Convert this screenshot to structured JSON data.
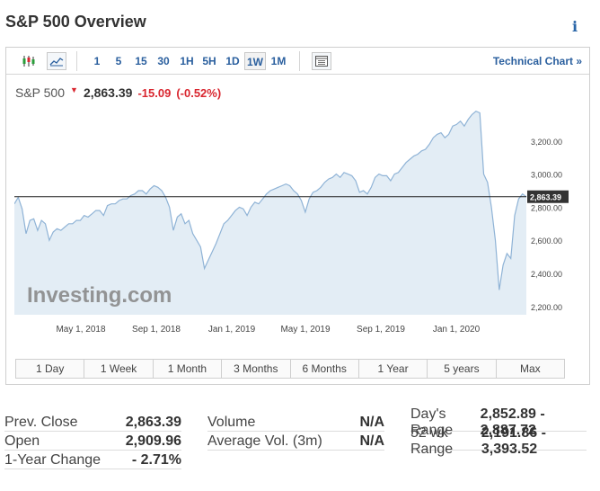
{
  "header": {
    "title": "S&P 500 Overview",
    "info_icon": "i"
  },
  "toolbar": {
    "intervals": [
      "1",
      "5",
      "15",
      "30",
      "1H",
      "5H",
      "1D",
      "1W",
      "1M"
    ],
    "active_interval": "1W",
    "technical_chart_label": "Technical Chart »"
  },
  "quote": {
    "name": "S&P 500",
    "last": "2,863.39",
    "change": "-15.09",
    "change_pct": "(-0.52%)",
    "down_color": "#d9262f"
  },
  "chart_data": {
    "type": "area",
    "x_tick_labels": [
      "May 1, 2018",
      "Sep 1, 2018",
      "Jan 1, 2019",
      "May 1, 2019",
      "Sep 1, 2019",
      "Jan 1, 2020"
    ],
    "y_tick_labels": [
      "3,200.00",
      "3,000.00",
      "2,800.00",
      "2,600.00",
      "2,400.00",
      "2,200.00"
    ],
    "ylim": [
      2150,
      3400
    ],
    "current_value_label": "2,863.39",
    "current_value": 2863.39,
    "watermark": "Investing.com",
    "line_color": "#8fb3d6",
    "fill_color": "#e3edf5",
    "series": [
      {
        "values": [
          2820,
          2860,
          2790,
          2640,
          2720,
          2730,
          2660,
          2720,
          2700,
          2600,
          2650,
          2670,
          2660,
          2680,
          2700,
          2700,
          2720,
          2720,
          2750,
          2740,
          2760,
          2780,
          2780,
          2750,
          2810,
          2820,
          2820,
          2840,
          2850,
          2850,
          2870,
          2880,
          2900,
          2900,
          2880,
          2910,
          2930,
          2920,
          2900,
          2860,
          2800,
          2660,
          2740,
          2760,
          2700,
          2720,
          2640,
          2600,
          2560,
          2430,
          2480,
          2530,
          2580,
          2640,
          2700,
          2720,
          2750,
          2780,
          2800,
          2790,
          2750,
          2800,
          2830,
          2820,
          2850,
          2880,
          2900,
          2910,
          2920,
          2930,
          2940,
          2930,
          2900,
          2880,
          2840,
          2770,
          2850,
          2890,
          2900,
          2920,
          2950,
          2970,
          2980,
          3000,
          2980,
          3010,
          3000,
          2990,
          2960,
          2890,
          2900,
          2880,
          2920,
          2980,
          3000,
          2990,
          2990,
          2960,
          3000,
          3010,
          3040,
          3070,
          3090,
          3110,
          3120,
          3140,
          3150,
          3180,
          3220,
          3240,
          3250,
          3220,
          3240,
          3290,
          3300,
          3320,
          3290,
          3330,
          3360,
          3380,
          3370,
          3000,
          2950,
          2800,
          2600,
          2300,
          2450,
          2520,
          2490,
          2750,
          2850,
          2880,
          2863
        ]
      }
    ]
  },
  "range_buttons": [
    "1 Day",
    "1 Week",
    "1 Month",
    "3 Months",
    "6 Months",
    "1 Year",
    "5 years",
    "Max"
  ],
  "stats": {
    "col1": [
      {
        "label": "Prev. Close",
        "value": "2,863.39"
      },
      {
        "label": "Open",
        "value": "2,909.96"
      },
      {
        "label": "1-Year Change",
        "value": "- 2.71%"
      }
    ],
    "col2": [
      {
        "label": "Volume",
        "value": "N/A"
      },
      {
        "label": "Average Vol. (3m)",
        "value": "N/A"
      }
    ],
    "col3": [
      {
        "label": "Day's Range",
        "value": "2,852.89 - 2,887.72"
      },
      {
        "label": "52 wk Range",
        "value": "2,191.86 - 3,393.52"
      }
    ]
  }
}
